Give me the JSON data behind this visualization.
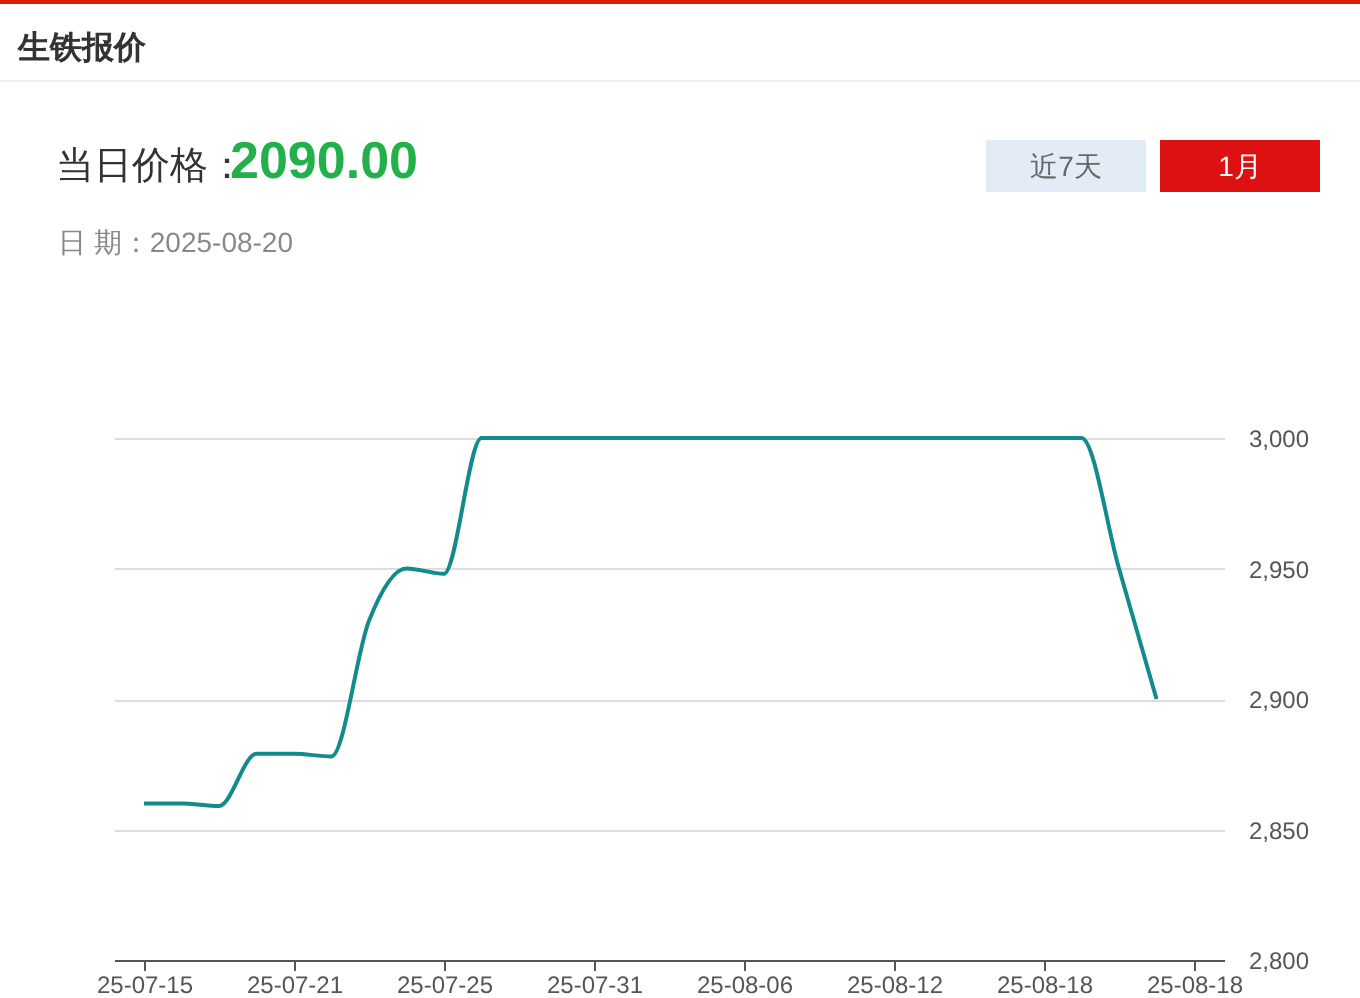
{
  "chart_data": {
    "type": "line",
    "title": "生铁报价",
    "annotations": [
      "当日价格：",
      "2090.00",
      "日 期：2025-08-20",
      "近7天",
      "1月"
    ],
    "categories": [
      "25-07-15",
      null,
      null,
      null,
      "25-07-21",
      null,
      null,
      null,
      "25-07-25",
      null,
      null,
      null,
      "25-07-31",
      null,
      null,
      null,
      "25-08-06",
      null,
      null,
      null,
      "25-08-12",
      null,
      null,
      null,
      "25-08-18",
      null,
      null,
      null,
      "25-08-18"
    ],
    "series": [
      {
        "color": "#138a8c",
        "values": [
          2860,
          2860,
          2859,
          2879,
          2879,
          2878,
          2930,
          2950,
          2948,
          3000,
          3000,
          3000,
          3000,
          3000,
          3000,
          3000,
          3000,
          3000,
          3000,
          3000,
          3000,
          3000,
          3000,
          3000,
          3000,
          3000,
          2950,
          2900,
          null
        ]
      }
    ],
    "ylim": [
      2800,
      3000
    ],
    "yticks": [
      {
        "value": 2800,
        "label": "2,800"
      },
      {
        "value": 2850,
        "label": "2,850"
      },
      {
        "value": 2900,
        "label": "2,900"
      },
      {
        "value": 2950,
        "label": "2,950"
      },
      {
        "value": 3000,
        "label": "3,000"
      }
    ],
    "grid": "y",
    "marker": "none",
    "line_style": "solid"
  }
}
